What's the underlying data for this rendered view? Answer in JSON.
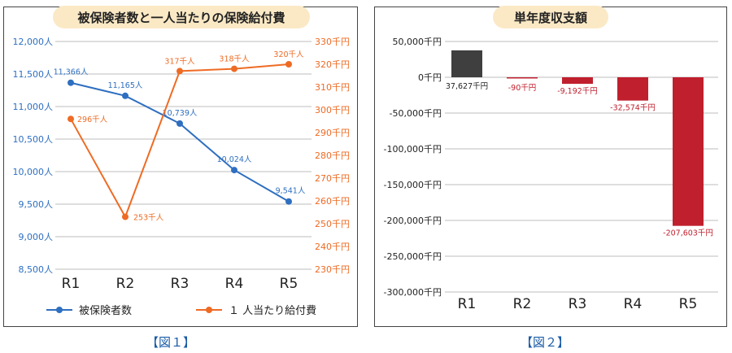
{
  "captions": [
    "【図１】",
    "【図２】"
  ],
  "colors": {
    "blue": "#2e6fc0",
    "orange": "#ee6b24",
    "dark": "#3f3f3f",
    "red": "#c0202e",
    "grid": "#bdbdbd"
  },
  "chart_data": [
    {
      "type": "line",
      "title": "被保険者数と一人当たりの保険給付費",
      "categories": [
        "R1",
        "R2",
        "R3",
        "R4",
        "R5"
      ],
      "series": [
        {
          "name": "被保険者数",
          "axis": "left",
          "color": "#2e6fc0",
          "values": [
            11366,
            11165,
            10739,
            10024,
            9541
          ],
          "labels": [
            "11,366人",
            "11,165人",
            "10,739人",
            "10,024人",
            "9,541人"
          ]
        },
        {
          "name": "１ 人当たり給付費",
          "axis": "right",
          "color": "#ee6b24",
          "values": [
            296,
            253,
            317,
            318,
            320
          ],
          "labels": [
            "296千人",
            "253千人",
            "317千人",
            "318千人",
            "320千人"
          ]
        }
      ],
      "ylim_left": [
        8500,
        12000
      ],
      "ytick_labels_left": [
        "12,000人",
        "11,500人",
        "11,000人",
        "10,500人",
        "10,000人",
        "9,500人",
        "9,000人",
        "8,500人"
      ],
      "ylim_right": [
        230,
        330
      ],
      "ytick_labels_right": [
        "330千円",
        "320千円",
        "310千円",
        "300千円",
        "290千円",
        "280千円",
        "270千円",
        "260千円",
        "250千円",
        "240千円",
        "230千円"
      ],
      "grid": true,
      "legend": "bottom"
    },
    {
      "type": "bar",
      "title": "単年度収支額",
      "categories": [
        "R1",
        "R2",
        "R3",
        "R4",
        "R5"
      ],
      "values": [
        37627,
        -90,
        -9192,
        -32574,
        -207603
      ],
      "labels": [
        "37,627千円",
        "-90千円",
        "-9,192千円",
        "-32,574千円",
        "-207,603千円"
      ],
      "colors": [
        "#3f3f3f",
        "#c0202e",
        "#c0202e",
        "#c0202e",
        "#c0202e"
      ],
      "ylim": [
        -300000,
        50000
      ],
      "ytick_labels": [
        "50,000千円",
        "0千円",
        "-50,000千円",
        "-100,000千円",
        "-150,000千円",
        "-200,000千円",
        "-250,000千円",
        "-300,000千円"
      ],
      "grid": true
    }
  ]
}
